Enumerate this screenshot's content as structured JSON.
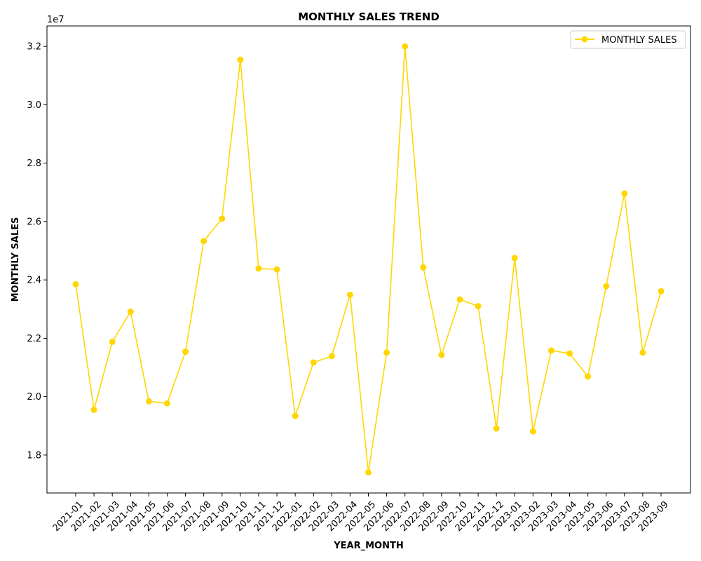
{
  "chart_data": {
    "type": "line",
    "title": "MONTHLY SALES TREND",
    "xlabel": "YEAR_MONTH",
    "ylabel": "MONTHLY SALES",
    "y_offset_label": "1e7",
    "y_tick_labels": [
      "1.8",
      "2.0",
      "2.2",
      "2.4",
      "2.6",
      "2.8",
      "3.0",
      "3.2"
    ],
    "ylim": [
      16700000,
      32700000
    ],
    "grid": false,
    "legend_position": "top-right",
    "line_color": "#FFD700",
    "categories": [
      "2021-01",
      "2021-02",
      "2021-03",
      "2021-04",
      "2021-05",
      "2021-06",
      "2021-07",
      "2021-08",
      "2021-09",
      "2021-10",
      "2021-11",
      "2021-12",
      "2022-01",
      "2022-02",
      "2022-03",
      "2022-04",
      "2022-05",
      "2022-06",
      "2022-07",
      "2022-08",
      "2022-09",
      "2022-10",
      "2022-11",
      "2022-12",
      "2023-01",
      "2023-02",
      "2023-03",
      "2023-04",
      "2023-05",
      "2023-06",
      "2023-07",
      "2023-08",
      "2023-09"
    ],
    "series": [
      {
        "name": "MONTHLY SALES",
        "values": [
          23850000,
          19550000,
          21880000,
          22910000,
          19840000,
          19770000,
          21540000,
          25330000,
          26100000,
          31540000,
          24390000,
          24360000,
          19340000,
          21170000,
          21390000,
          23490000,
          17410000,
          21510000,
          32000000,
          24430000,
          21430000,
          23330000,
          23100000,
          18910000,
          24750000,
          18810000,
          21580000,
          21480000,
          20690000,
          23780000,
          26960000,
          21510000,
          23610000
        ]
      }
    ]
  }
}
